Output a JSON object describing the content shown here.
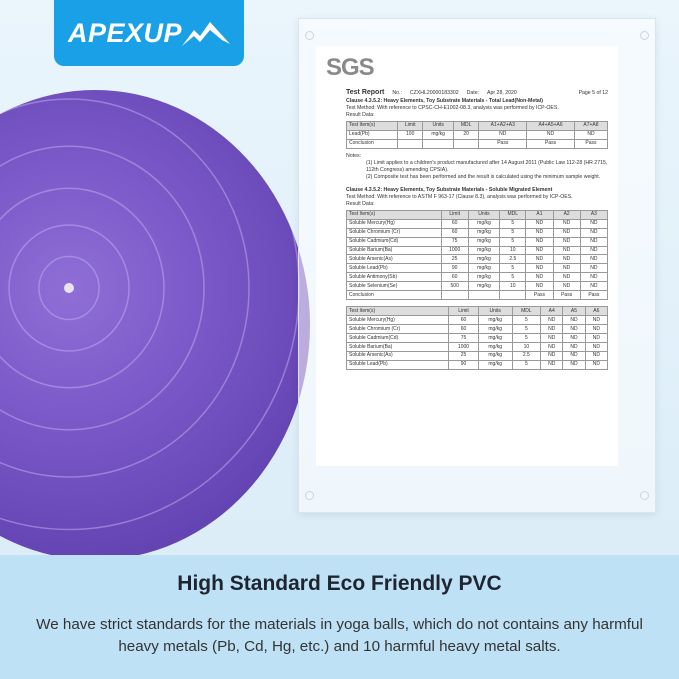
{
  "brand": {
    "logo_text": "APEXUP",
    "logo_color": "#1aa0e6"
  },
  "report": {
    "lab_logo": "SGS",
    "title": "Test Report",
    "no_label": "No.:",
    "no_value": "CZXHL20000183302",
    "date_label": "Date:",
    "date_value": "Apr 28, 2020",
    "page": "Page 5 of 12",
    "clause1": "Clause 4.3.5.2: Heavy Elements, Toy Substrate Materials - Total Lead(Non-Metal)",
    "method1": "Test Method:   With reference to CPSC-CH-E1002-08.3, analysis was performed by ICP-OES.",
    "result_label": "Result Data:",
    "table1": [
      [
        "Test Item(s)",
        "Limit",
        "Units",
        "MDL",
        "A1+A2+A3",
        "A4+A5+A6",
        "A7+A8"
      ],
      [
        "Lead(Pb)",
        "100",
        "mg/kg",
        "20",
        "ND",
        "ND",
        "ND"
      ],
      [
        "Conclusion",
        "",
        "",
        "",
        "Pass",
        "Pass",
        "Pass"
      ]
    ],
    "notes_label": "Notes:",
    "note1": "(1) Limit applies to a children's product manufactured after 14 August 2011 (Public Law 112-28 (HR 2715, 112th Congress) amending CPSIA).",
    "note2": "(2) Composite test has been performed and the result is calculated using the minimum sample weight.",
    "clause2": "Clause 4.3.5.2: Heavy Elements, Toy Substrate Materials - Soluble Migrated Element",
    "method2": "Test Method:   With reference to ASTM F 963-17 (Clause 8.3), analysis was performed by ICP-OES.",
    "table2": [
      [
        "Test Item(s)",
        "Limit",
        "Units",
        "MDL",
        "A1",
        "A2",
        "A3"
      ],
      [
        "Soluble Mercury(Hg)",
        "60",
        "mg/kg",
        "5",
        "ND",
        "ND",
        "ND"
      ],
      [
        "Soluble Chromium (Cr)",
        "60",
        "mg/kg",
        "5",
        "ND",
        "ND",
        "ND"
      ],
      [
        "Soluble Cadmium(Cd)",
        "75",
        "mg/kg",
        "5",
        "ND",
        "ND",
        "ND"
      ],
      [
        "Soluble Barium(Ba)",
        "1000",
        "mg/kg",
        "10",
        "ND",
        "ND",
        "ND"
      ],
      [
        "Soluble Arsenic(As)",
        "25",
        "mg/kg",
        "2.5",
        "ND",
        "ND",
        "ND"
      ],
      [
        "Soluble Lead(Pb)",
        "90",
        "mg/kg",
        "5",
        "ND",
        "ND",
        "ND"
      ],
      [
        "Soluble Antimony(Sb)",
        "60",
        "mg/kg",
        "5",
        "ND",
        "ND",
        "ND"
      ],
      [
        "Soluble Selenium(Se)",
        "500",
        "mg/kg",
        "10",
        "ND",
        "ND",
        "ND"
      ],
      [
        "Conclusion",
        "",
        "",
        "",
        "Pass",
        "Pass",
        "Pass"
      ]
    ],
    "table3": [
      [
        "Test Item(s)",
        "Limit",
        "Units",
        "MDL",
        "A4",
        "A5",
        "A6"
      ],
      [
        "Soluble Mercury(Hg)",
        "60",
        "mg/kg",
        "5",
        "ND",
        "ND",
        "ND"
      ],
      [
        "Soluble Chromium (Cr)",
        "60",
        "mg/kg",
        "5",
        "ND",
        "ND",
        "ND"
      ],
      [
        "Soluble Cadmium(Cd)",
        "75",
        "mg/kg",
        "5",
        "ND",
        "ND",
        "ND"
      ],
      [
        "Soluble Barium(Ba)",
        "1000",
        "mg/kg",
        "10",
        "ND",
        "ND",
        "ND"
      ],
      [
        "Soluble Arsenic(As)",
        "25",
        "mg/kg",
        "2.5",
        "ND",
        "ND",
        "ND"
      ],
      [
        "Soluble Lead(Pb)",
        "90",
        "mg/kg",
        "5",
        "ND",
        "ND",
        "ND"
      ]
    ]
  },
  "headline": "High Standard Eco Friendly PVC",
  "description": "We have strict standards for the materials in yoga balls, which do not contains any harmful heavy metals (Pb, Cd, Hg, etc.) and 10 harmful heavy metal salts."
}
